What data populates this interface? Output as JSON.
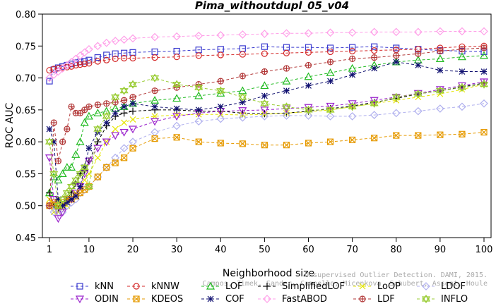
{
  "chart_data": {
    "type": "line",
    "title": "Pima_withoutdupl_05_v04",
    "xlabel": "Neighborhood size",
    "ylabel": "ROC AUC",
    "xlim": [
      1,
      100
    ],
    "ylim": [
      0.45,
      0.8
    ],
    "xticks": [
      1,
      10,
      20,
      30,
      40,
      50,
      60,
      70,
      80,
      90,
      100
    ],
    "yticks": [
      0.45,
      0.5,
      0.55,
      0.6,
      0.65,
      0.7,
      0.75,
      0.8
    ],
    "ytick_labels": [
      "0.45",
      "0.50",
      "0.55",
      "0.60",
      "0.65",
      "0.70",
      "0.75",
      "0.80"
    ],
    "grid": false,
    "legend_position": "bottom",
    "watermark": [
      "Unsupervised Outlier Detection. DAMI, 2015.",
      "Campos, Zimek, Sander, Campello, Micenkova, Schubert, Assent, Houle"
    ],
    "series": [
      {
        "name": "kNN",
        "color": "#3b3bcf",
        "marker": "square",
        "x": [
          1,
          2,
          3,
          4,
          5,
          6,
          7,
          8,
          9,
          10,
          12,
          14,
          16,
          18,
          20,
          25,
          30,
          35,
          40,
          45,
          50,
          55,
          60,
          65,
          70,
          75,
          80,
          85,
          90,
          95,
          100
        ],
        "y": [
          0.695,
          0.713,
          0.716,
          0.718,
          0.72,
          0.722,
          0.724,
          0.725,
          0.726,
          0.728,
          0.732,
          0.736,
          0.738,
          0.739,
          0.74,
          0.741,
          0.742,
          0.744,
          0.745,
          0.746,
          0.749,
          0.748,
          0.748,
          0.747,
          0.748,
          0.749,
          0.747,
          0.745,
          0.743,
          0.742,
          0.741
        ]
      },
      {
        "name": "kNNW",
        "color": "#d42a2a",
        "marker": "circle",
        "x": [
          1,
          2,
          3,
          4,
          5,
          6,
          7,
          8,
          9,
          10,
          12,
          14,
          16,
          18,
          20,
          25,
          30,
          35,
          40,
          45,
          50,
          55,
          60,
          65,
          70,
          75,
          80,
          85,
          90,
          95,
          100
        ],
        "y": [
          0.712,
          0.714,
          0.715,
          0.716,
          0.717,
          0.718,
          0.72,
          0.721,
          0.722,
          0.723,
          0.726,
          0.728,
          0.73,
          0.731,
          0.731,
          0.732,
          0.733,
          0.735,
          0.736,
          0.737,
          0.738,
          0.739,
          0.74,
          0.741,
          0.742,
          0.743,
          0.744,
          0.745,
          0.747,
          0.749,
          0.75
        ]
      },
      {
        "name": "LOF",
        "color": "#22bb22",
        "marker": "triangle-up",
        "x": [
          1,
          2,
          3,
          4,
          5,
          6,
          7,
          8,
          9,
          10,
          12,
          14,
          16,
          18,
          20,
          25,
          30,
          35,
          40,
          45,
          50,
          55,
          60,
          65,
          70,
          75,
          80,
          85,
          90,
          95,
          100
        ],
        "y": [
          0.52,
          0.545,
          0.54,
          0.55,
          0.56,
          0.56,
          0.58,
          0.6,
          0.63,
          0.64,
          0.645,
          0.648,
          0.652,
          0.655,
          0.66,
          0.665,
          0.668,
          0.672,
          0.676,
          0.68,
          0.688,
          0.695,
          0.702,
          0.708,
          0.715,
          0.72,
          0.725,
          0.728,
          0.73,
          0.733,
          0.735
        ]
      },
      {
        "name": "SimplifiedLOF",
        "color": "#000000",
        "marker": "plus",
        "x": [
          1,
          2,
          3,
          4,
          5,
          6,
          7,
          8,
          9,
          10,
          12,
          14,
          16,
          18,
          20,
          25,
          30,
          35,
          40,
          45,
          50,
          55,
          60,
          65,
          70,
          75,
          80,
          85,
          90,
          95,
          100
        ],
        "y": [
          0.52,
          0.5,
          0.495,
          0.5,
          0.51,
          0.52,
          0.535,
          0.55,
          0.555,
          0.57,
          0.6,
          0.625,
          0.64,
          0.645,
          0.648,
          0.65,
          0.65,
          0.648,
          0.648,
          0.645,
          0.644,
          0.645,
          0.648,
          0.652,
          0.656,
          0.662,
          0.668,
          0.675,
          0.68,
          0.686,
          0.692
        ]
      },
      {
        "name": "LoOP",
        "color": "#e6e600",
        "marker": "x",
        "x": [
          1,
          2,
          3,
          4,
          5,
          6,
          7,
          8,
          9,
          10,
          12,
          14,
          16,
          18,
          20,
          25,
          30,
          35,
          40,
          45,
          50,
          55,
          60,
          65,
          70,
          75,
          80,
          85,
          90,
          95,
          100
        ],
        "y": [
          0.51,
          0.49,
          0.49,
          0.495,
          0.5,
          0.51,
          0.52,
          0.53,
          0.54,
          0.55,
          0.575,
          0.6,
          0.62,
          0.63,
          0.635,
          0.64,
          0.642,
          0.643,
          0.643,
          0.642,
          0.643,
          0.645,
          0.647,
          0.65,
          0.655,
          0.66,
          0.665,
          0.67,
          0.675,
          0.682,
          0.69
        ]
      },
      {
        "name": "LDOF",
        "color": "#b0b0ee",
        "marker": "diamond",
        "x": [
          1,
          2,
          3,
          4,
          5,
          6,
          7,
          8,
          9,
          10,
          12,
          14,
          16,
          18,
          20,
          25,
          30,
          35,
          40,
          45,
          50,
          55,
          60,
          65,
          70,
          75,
          80,
          85,
          90,
          95,
          100
        ],
        "y": [
          0.5,
          0.49,
          0.49,
          0.49,
          0.5,
          0.505,
          0.51,
          0.52,
          0.525,
          0.53,
          0.545,
          0.56,
          0.575,
          0.59,
          0.6,
          0.615,
          0.625,
          0.632,
          0.636,
          0.638,
          0.64,
          0.641,
          0.641,
          0.64,
          0.64,
          0.642,
          0.645,
          0.648,
          0.652,
          0.655,
          0.66
        ]
      },
      {
        "name": "ODIN",
        "color": "#9a22cc",
        "marker": "triangle-down",
        "x": [
          1,
          2,
          3,
          4,
          5,
          6,
          7,
          8,
          9,
          10,
          12,
          14,
          16,
          18,
          20,
          25,
          30,
          35,
          40,
          45,
          50,
          55,
          60,
          65,
          70,
          75,
          80,
          85,
          90,
          95,
          100
        ],
        "y": [
          0.575,
          0.51,
          0.48,
          0.49,
          0.51,
          0.51,
          0.52,
          0.53,
          0.55,
          0.57,
          0.59,
          0.6,
          0.61,
          0.615,
          0.62,
          0.632,
          0.64,
          0.645,
          0.648,
          0.649,
          0.65,
          0.652,
          0.654,
          0.656,
          0.66,
          0.665,
          0.67,
          0.676,
          0.682,
          0.688,
          0.694
        ]
      },
      {
        "name": "KDEOS",
        "color": "#e69a00",
        "marker": "square-x",
        "x": [
          1,
          2,
          3,
          4,
          5,
          6,
          7,
          8,
          9,
          10,
          12,
          14,
          16,
          18,
          20,
          25,
          30,
          35,
          40,
          45,
          50,
          55,
          60,
          65,
          70,
          75,
          80,
          85,
          90,
          95,
          100
        ],
        "y": [
          0.5,
          0.505,
          0.5,
          0.505,
          0.51,
          0.51,
          0.515,
          0.52,
          0.525,
          0.53,
          0.545,
          0.56,
          0.567,
          0.575,
          0.59,
          0.605,
          0.607,
          0.6,
          0.598,
          0.597,
          0.595,
          0.595,
          0.598,
          0.6,
          0.603,
          0.606,
          0.61,
          0.61,
          0.611,
          0.612,
          0.615
        ]
      },
      {
        "name": "COF",
        "color": "#101070",
        "marker": "star",
        "x": [
          1,
          2,
          3,
          4,
          5,
          6,
          7,
          8,
          9,
          10,
          12,
          14,
          16,
          18,
          20,
          25,
          30,
          35,
          40,
          45,
          50,
          55,
          60,
          65,
          70,
          75,
          80,
          85,
          90,
          95,
          100
        ],
        "y": [
          0.62,
          0.6,
          0.51,
          0.5,
          0.505,
          0.51,
          0.515,
          0.53,
          0.56,
          0.59,
          0.615,
          0.63,
          0.645,
          0.655,
          0.66,
          0.655,
          0.652,
          0.65,
          0.655,
          0.662,
          0.672,
          0.68,
          0.688,
          0.695,
          0.705,
          0.715,
          0.725,
          0.72,
          0.712,
          0.71,
          0.71
        ]
      },
      {
        "name": "FastABOD",
        "color": "#ff9ee8",
        "marker": "diamond",
        "x": [
          1,
          2,
          3,
          4,
          5,
          6,
          7,
          8,
          9,
          10,
          12,
          14,
          16,
          18,
          20,
          25,
          30,
          35,
          40,
          45,
          50,
          55,
          60,
          65,
          70,
          75,
          80,
          85,
          90,
          95,
          100
        ],
        "y": [
          0.7,
          0.705,
          0.71,
          0.715,
          0.72,
          0.725,
          0.73,
          0.735,
          0.74,
          0.745,
          0.75,
          0.755,
          0.758,
          0.76,
          0.762,
          0.764,
          0.765,
          0.766,
          0.767,
          0.768,
          0.769,
          0.77,
          0.77,
          0.771,
          0.771,
          0.772,
          0.772,
          0.772,
          0.773,
          0.773,
          0.773
        ]
      },
      {
        "name": "LDF",
        "color": "#b23838",
        "marker": "circle-plus",
        "x": [
          1,
          2,
          3,
          4,
          5,
          6,
          7,
          8,
          9,
          10,
          12,
          14,
          16,
          18,
          20,
          25,
          30,
          35,
          40,
          45,
          50,
          55,
          60,
          65,
          70,
          75,
          80,
          85,
          90,
          95,
          100
        ],
        "y": [
          0.5,
          0.63,
          0.57,
          0.6,
          0.62,
          0.655,
          0.645,
          0.645,
          0.65,
          0.655,
          0.658,
          0.66,
          0.662,
          0.665,
          0.67,
          0.68,
          0.685,
          0.69,
          0.695,
          0.703,
          0.71,
          0.715,
          0.72,
          0.725,
          0.73,
          0.732,
          0.735,
          0.738,
          0.742,
          0.745,
          0.747
        ]
      },
      {
        "name": "INFLO",
        "color": "#99cc33",
        "marker": "hexagram",
        "x": [
          1,
          2,
          3,
          4,
          5,
          6,
          7,
          8,
          9,
          10,
          12,
          14,
          16,
          18,
          20,
          25,
          30,
          35,
          40,
          45,
          50,
          55,
          60,
          65,
          70,
          75,
          80,
          85,
          90,
          95,
          100
        ],
        "y": [
          0.6,
          0.55,
          0.5,
          0.51,
          0.52,
          0.53,
          0.54,
          0.55,
          0.56,
          0.53,
          0.62,
          0.64,
          0.67,
          0.68,
          0.69,
          0.7,
          0.69,
          0.685,
          0.68,
          0.67,
          0.66,
          0.655,
          0.65,
          0.65,
          0.655,
          0.66,
          0.67,
          0.675,
          0.68,
          0.685,
          0.69
        ]
      }
    ]
  }
}
